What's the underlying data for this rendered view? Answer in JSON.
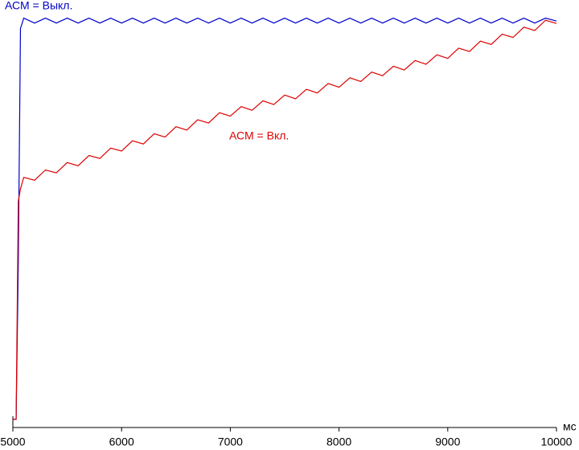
{
  "chart_data": {
    "type": "line",
    "x_label": "мс",
    "x": [
      5000,
      5030,
      5050,
      5070,
      5100,
      5200,
      5300,
      5400,
      5500,
      5600,
      5700,
      5800,
      5900,
      6000,
      6100,
      6200,
      6300,
      6400,
      6500,
      6600,
      6700,
      6800,
      6900,
      7000,
      7100,
      7200,
      7300,
      7400,
      7500,
      7600,
      7700,
      7800,
      7900,
      8000,
      8100,
      8200,
      8300,
      8400,
      8500,
      8600,
      8700,
      8800,
      8900,
      9000,
      9100,
      9200,
      9300,
      9400,
      9500,
      9600,
      9700,
      9800,
      9900,
      10000
    ],
    "series": [
      {
        "name": "АСМ = Выкл.",
        "color": "#0000cc",
        "values": [
          2,
          2,
          40,
          97,
          99.5,
          98.3,
          99.5,
          98.3,
          99.5,
          98.3,
          99.5,
          98.3,
          99.5,
          98.3,
          99.5,
          98.3,
          99.5,
          98.3,
          99.5,
          98.3,
          99.5,
          98.3,
          99.5,
          98.3,
          99.5,
          98.3,
          99.5,
          98.3,
          99.5,
          98.3,
          99.5,
          98.3,
          99.5,
          98.3,
          99.5,
          98.3,
          99.5,
          98.3,
          99.5,
          98.3,
          99.5,
          98.3,
          99.5,
          98.3,
          99.5,
          98.3,
          99.5,
          98.3,
          99.5,
          98.3,
          99.5,
          98.3,
          99.5,
          98.8
        ]
      },
      {
        "name": "АСМ = Вкл.",
        "color": "#dd0000",
        "values": [
          2,
          2,
          55,
          58,
          60.8,
          60.1,
          62.6,
          61.9,
          64.4,
          63.6,
          66.1,
          65.4,
          67.9,
          67.2,
          69.7,
          68.9,
          71.4,
          70.6,
          73.1,
          72.3,
          74.8,
          74.0,
          76.5,
          75.7,
          78.0,
          77.1,
          79.4,
          78.5,
          80.8,
          79.9,
          82.2,
          81.3,
          83.6,
          82.7,
          85.0,
          84.1,
          86.4,
          85.5,
          87.8,
          86.9,
          89.2,
          88.3,
          90.6,
          89.7,
          92.2,
          91.4,
          93.9,
          93.1,
          95.6,
          94.8,
          97.3,
          96.5,
          99.0,
          98.2
        ]
      }
    ],
    "xlim": [
      5000,
      10000
    ],
    "ylim": [
      0,
      100
    ],
    "xticks": [
      5000,
      6000,
      7000,
      8000,
      9000,
      10000
    ]
  }
}
